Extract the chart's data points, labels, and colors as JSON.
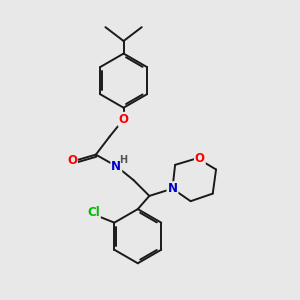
{
  "bg_color": "#e8e8e8",
  "bond_color": "#1a1a1a",
  "atom_colors": {
    "O": "#ff0000",
    "N": "#0000cc",
    "Cl": "#00bb00",
    "C": "#1a1a1a",
    "H": "#555555"
  },
  "figsize": [
    3.0,
    3.0
  ],
  "dpi": 100
}
